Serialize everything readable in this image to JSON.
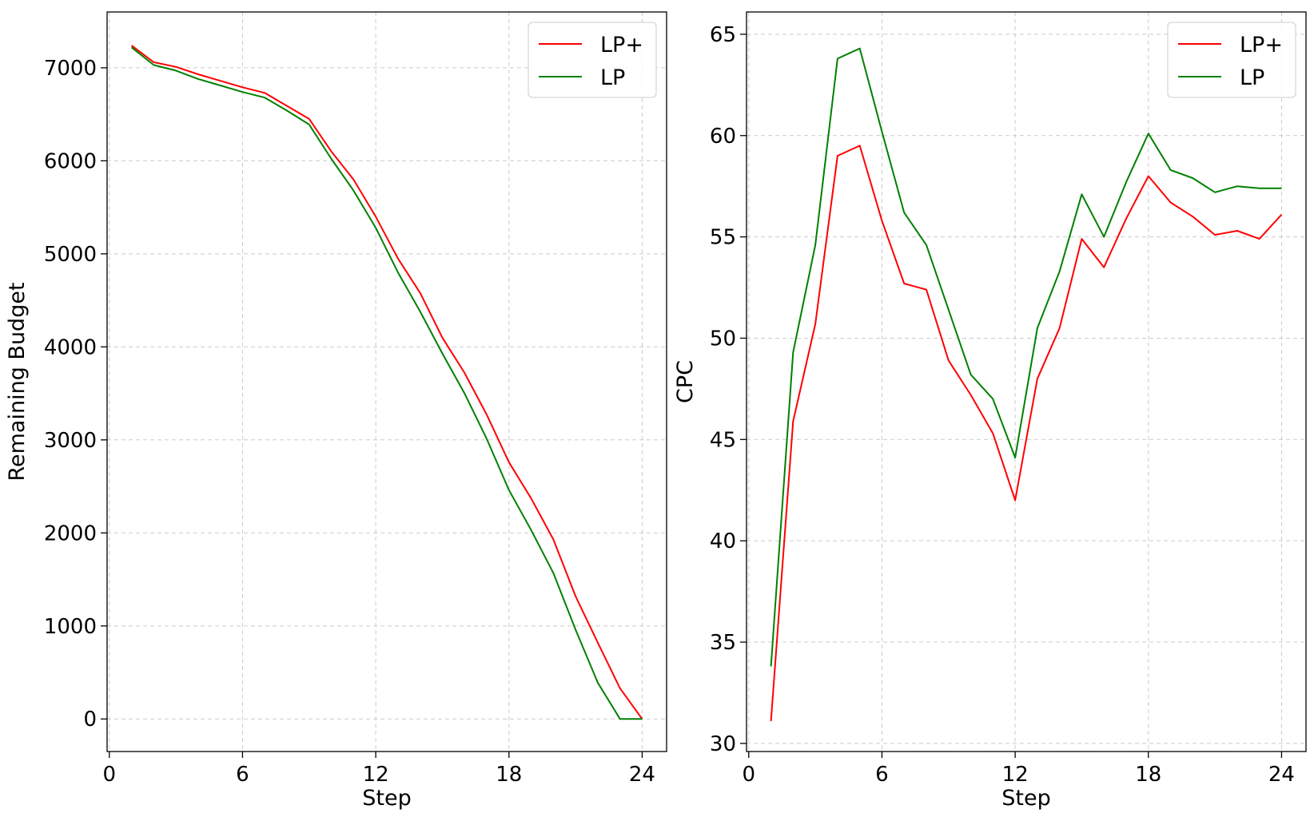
{
  "chart_data": [
    {
      "type": "line",
      "xlabel": "Step",
      "ylabel": "Remaining Budget",
      "xlim": [
        -0.1,
        25.1
      ],
      "ylim": [
        -350,
        7600
      ],
      "xticks": [
        0,
        6,
        12,
        18,
        24
      ],
      "xtick_labels": [
        "0",
        "6",
        "12",
        "18",
        "24"
      ],
      "yticks": [
        0,
        1000,
        2000,
        3000,
        4000,
        5000,
        6000,
        7000
      ],
      "ytick_labels": [
        "0",
        "1000",
        "2000",
        "3000",
        "4000",
        "5000",
        "6000",
        "7000"
      ],
      "grid": true,
      "legend_position": "top-right",
      "x": [
        1,
        2,
        3,
        4,
        5,
        6,
        7,
        8,
        9,
        10,
        11,
        12,
        13,
        14,
        15,
        16,
        17,
        18,
        19,
        20,
        21,
        22,
        23,
        24
      ],
      "series": [
        {
          "name": "LP+",
          "color": "#ff0000",
          "values": [
            7240,
            7060,
            7010,
            6930,
            6860,
            6790,
            6730,
            6590,
            6450,
            6100,
            5800,
            5400,
            4950,
            4580,
            4100,
            3720,
            3270,
            2760,
            2370,
            1930,
            1320,
            820,
            330,
            0
          ]
        },
        {
          "name": "LP",
          "color": "#008000",
          "values": [
            7220,
            7030,
            6970,
            6880,
            6810,
            6740,
            6680,
            6540,
            6390,
            6020,
            5680,
            5280,
            4800,
            4380,
            3930,
            3500,
            3010,
            2460,
            2030,
            1570,
            960,
            390,
            0,
            0
          ]
        }
      ]
    },
    {
      "type": "line",
      "xlabel": "Step",
      "ylabel": "CPC",
      "xlim": [
        -0.1,
        25.1
      ],
      "ylim": [
        29.6,
        66.1
      ],
      "xticks": [
        0,
        6,
        12,
        18,
        24
      ],
      "xtick_labels": [
        "0",
        "6",
        "12",
        "18",
        "24"
      ],
      "yticks": [
        30,
        35,
        40,
        45,
        50,
        55,
        60,
        65
      ],
      "ytick_labels": [
        "30",
        "35",
        "40",
        "45",
        "50",
        "55",
        "60",
        "65"
      ],
      "grid": true,
      "legend_position": "top-right",
      "x": [
        1,
        2,
        3,
        4,
        5,
        6,
        7,
        8,
        9,
        10,
        11,
        12,
        13,
        14,
        15,
        16,
        17,
        18,
        19,
        20,
        21,
        22,
        23,
        24
      ],
      "series": [
        {
          "name": "LP+",
          "color": "#ff0000",
          "values": [
            31.1,
            45.9,
            50.7,
            59.0,
            59.5,
            55.8,
            52.7,
            52.4,
            48.9,
            47.2,
            45.3,
            42.0,
            48.0,
            50.5,
            54.9,
            53.5,
            55.9,
            58.0,
            56.7,
            56.0,
            55.1,
            55.3,
            54.9,
            56.1
          ]
        },
        {
          "name": "LP",
          "color": "#008000",
          "values": [
            33.8,
            49.3,
            54.6,
            63.8,
            64.3,
            60.2,
            56.2,
            54.6,
            51.4,
            48.2,
            47.0,
            44.1,
            50.5,
            53.3,
            57.1,
            55.0,
            57.7,
            60.1,
            58.3,
            57.9,
            57.2,
            57.5,
            57.4,
            57.4
          ]
        }
      ]
    }
  ]
}
